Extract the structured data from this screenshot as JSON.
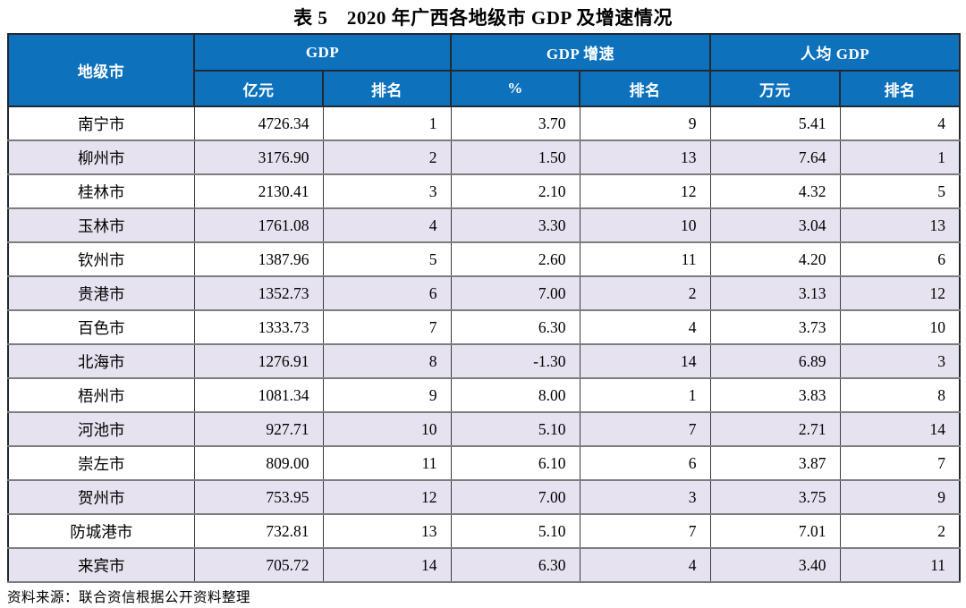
{
  "title": "表 5　2020 年广西各地级市 GDP 及增速情况",
  "source": "资料来源：联合资信根据公开资料整理",
  "colors": {
    "header_bg": "#0D71BC",
    "header_fg": "#FFFFFF",
    "row_alt_bg": "#E7E2EF",
    "row_bg": "#FFFFFF"
  },
  "table": {
    "header": {
      "city": "地级市",
      "groups": [
        {
          "label": "GDP",
          "sub": [
            "亿元",
            "排名"
          ]
        },
        {
          "label": "GDP 增速",
          "sub": [
            "%",
            "排名"
          ]
        },
        {
          "label": "人均 GDP",
          "sub": [
            "万元",
            "排名"
          ]
        }
      ]
    },
    "rows": [
      {
        "city": "南宁市",
        "gdp": "4726.34",
        "gdp_rank": "1",
        "growth": "3.70",
        "growth_rank": "9",
        "per_capita": "5.41",
        "per_capita_rank": "4"
      },
      {
        "city": "柳州市",
        "gdp": "3176.90",
        "gdp_rank": "2",
        "growth": "1.50",
        "growth_rank": "13",
        "per_capita": "7.64",
        "per_capita_rank": "1"
      },
      {
        "city": "桂林市",
        "gdp": "2130.41",
        "gdp_rank": "3",
        "growth": "2.10",
        "growth_rank": "12",
        "per_capita": "4.32",
        "per_capita_rank": "5"
      },
      {
        "city": "玉林市",
        "gdp": "1761.08",
        "gdp_rank": "4",
        "growth": "3.30",
        "growth_rank": "10",
        "per_capita": "3.04",
        "per_capita_rank": "13"
      },
      {
        "city": "钦州市",
        "gdp": "1387.96",
        "gdp_rank": "5",
        "growth": "2.60",
        "growth_rank": "11",
        "per_capita": "4.20",
        "per_capita_rank": "6"
      },
      {
        "city": "贵港市",
        "gdp": "1352.73",
        "gdp_rank": "6",
        "growth": "7.00",
        "growth_rank": "2",
        "per_capita": "3.13",
        "per_capita_rank": "12"
      },
      {
        "city": "百色市",
        "gdp": "1333.73",
        "gdp_rank": "7",
        "growth": "6.30",
        "growth_rank": "4",
        "per_capita": "3.73",
        "per_capita_rank": "10"
      },
      {
        "city": "北海市",
        "gdp": "1276.91",
        "gdp_rank": "8",
        "growth": "-1.30",
        "growth_rank": "14",
        "per_capita": "6.89",
        "per_capita_rank": "3"
      },
      {
        "city": "梧州市",
        "gdp": "1081.34",
        "gdp_rank": "9",
        "growth": "8.00",
        "growth_rank": "1",
        "per_capita": "3.83",
        "per_capita_rank": "8"
      },
      {
        "city": "河池市",
        "gdp": "927.71",
        "gdp_rank": "10",
        "growth": "5.10",
        "growth_rank": "7",
        "per_capita": "2.71",
        "per_capita_rank": "14"
      },
      {
        "city": "崇左市",
        "gdp": "809.00",
        "gdp_rank": "11",
        "growth": "6.10",
        "growth_rank": "6",
        "per_capita": "3.87",
        "per_capita_rank": "7"
      },
      {
        "city": "贺州市",
        "gdp": "753.95",
        "gdp_rank": "12",
        "growth": "7.00",
        "growth_rank": "3",
        "per_capita": "3.75",
        "per_capita_rank": "9"
      },
      {
        "city": "防城港市",
        "gdp": "732.81",
        "gdp_rank": "13",
        "growth": "5.10",
        "growth_rank": "7",
        "per_capita": "7.01",
        "per_capita_rank": "2"
      },
      {
        "city": "来宾市",
        "gdp": "705.72",
        "gdp_rank": "14",
        "growth": "6.30",
        "growth_rank": "4",
        "per_capita": "3.40",
        "per_capita_rank": "11"
      }
    ]
  }
}
